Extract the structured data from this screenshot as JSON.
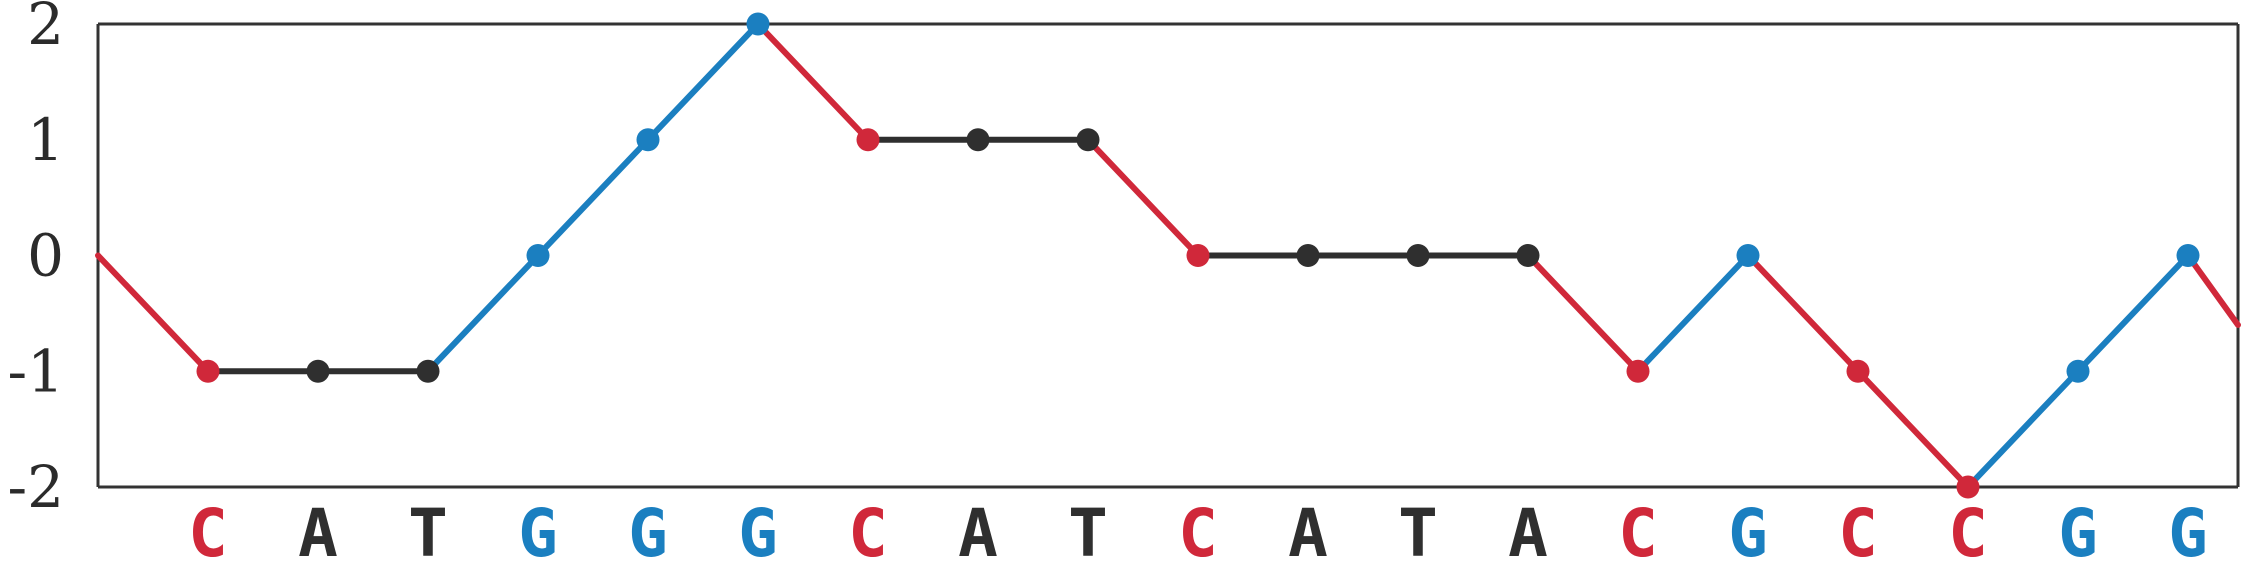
{
  "chart_data": {
    "type": "line",
    "title": "",
    "xlabel": "",
    "ylabel": "",
    "ylim": [
      -2,
      2
    ],
    "yticks": [
      "2",
      "1",
      "0",
      "-1",
      "-2"
    ],
    "ytick_values": [
      2,
      1,
      0,
      -1,
      -2
    ],
    "bases": [
      "C",
      "A",
      "T",
      "G",
      "G",
      "G",
      "C",
      "A",
      "T",
      "C",
      "A",
      "T",
      "A",
      "C",
      "G",
      "C",
      "C",
      "G",
      "G"
    ],
    "values": [
      -1,
      -1,
      -1,
      0,
      1,
      2,
      1,
      1,
      1,
      0,
      0,
      0,
      0,
      -1,
      0,
      -1,
      -2,
      -1,
      0
    ],
    "start_value": 0,
    "end_value": -0.6,
    "grid": false,
    "colors": {
      "C": "#d0283a",
      "G": "#1b7fc0",
      "A": "#2f2f2f",
      "T": "#2f2f2f",
      "axis": "#333333"
    }
  }
}
